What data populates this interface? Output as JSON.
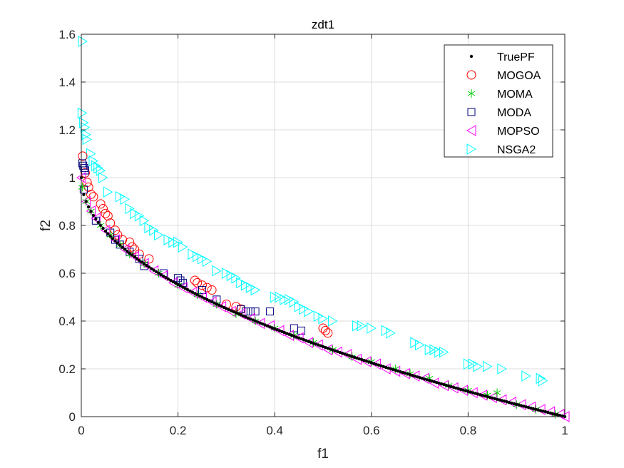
{
  "chart_data": {
    "type": "scatter",
    "title": "zdt1",
    "xlabel": "f1",
    "ylabel": "f2",
    "xlim": [
      0,
      1
    ],
    "ylim": [
      0,
      1.6
    ],
    "xticks": [
      "0",
      "0.2",
      "0.4",
      "0.6",
      "0.8",
      "1"
    ],
    "yticks": [
      "0",
      "0.2",
      "0.4",
      "0.6",
      "0.8",
      "1",
      "1.2",
      "1.4",
      "1.6"
    ],
    "xtick_values": [
      0,
      0.2,
      0.4,
      0.6,
      0.8,
      1
    ],
    "ytick_values": [
      0,
      0.2,
      0.4,
      0.6,
      0.8,
      1,
      1.2,
      1.4,
      1.6
    ],
    "grid": true,
    "legend_position": "top-right",
    "series": [
      {
        "name": "TruePF",
        "marker": "dot",
        "color": "#000000",
        "x": [
          0,
          0.005,
          0.01,
          0.02,
          0.03,
          0.04,
          0.05,
          0.06,
          0.08,
          0.1,
          0.12,
          0.14,
          0.16,
          0.18,
          0.2,
          0.22,
          0.24,
          0.26,
          0.28,
          0.3,
          0.32,
          0.34,
          0.36,
          0.38,
          0.4,
          0.42,
          0.44,
          0.46,
          0.48,
          0.5,
          0.52,
          0.54,
          0.56,
          0.58,
          0.6,
          0.62,
          0.64,
          0.66,
          0.68,
          0.7,
          0.72,
          0.74,
          0.76,
          0.78,
          0.8,
          0.82,
          0.84,
          0.86,
          0.88,
          0.9,
          0.92,
          0.94,
          0.96,
          0.98,
          1
        ],
        "y": [
          1,
          0.929,
          0.9,
          0.859,
          0.827,
          0.8,
          0.776,
          0.755,
          0.717,
          0.684,
          0.654,
          0.626,
          0.6,
          0.576,
          0.553,
          0.531,
          0.51,
          0.49,
          0.471,
          0.452,
          0.434,
          0.417,
          0.4,
          0.384,
          0.368,
          0.352,
          0.337,
          0.322,
          0.307,
          0.293,
          0.279,
          0.265,
          0.252,
          0.238,
          0.225,
          0.213,
          0.2,
          0.188,
          0.175,
          0.163,
          0.151,
          0.14,
          0.128,
          0.117,
          0.106,
          0.094,
          0.083,
          0.073,
          0.062,
          0.051,
          0.041,
          0.03,
          0.02,
          0.01,
          0
        ]
      },
      {
        "name": "MOGOA",
        "marker": "circle",
        "color": "#FF0000",
        "x": [
          0.003,
          0.008,
          0.012,
          0.015,
          0.02,
          0.025,
          0.04,
          0.045,
          0.05,
          0.055,
          0.06,
          0.07,
          0.075,
          0.085,
          0.1,
          0.105,
          0.11,
          0.12,
          0.14,
          0.235,
          0.24,
          0.25,
          0.26,
          0.27,
          0.3,
          0.32,
          0.33,
          0.5,
          0.505,
          0.51
        ],
        "y": [
          1.09,
          1.02,
          0.98,
          0.96,
          0.93,
          0.92,
          0.89,
          0.87,
          0.85,
          0.84,
          0.81,
          0.78,
          0.76,
          0.74,
          0.73,
          0.71,
          0.7,
          0.68,
          0.66,
          0.57,
          0.56,
          0.55,
          0.54,
          0.53,
          0.47,
          0.46,
          0.45,
          0.37,
          0.36,
          0.35
        ]
      },
      {
        "name": "MOMA",
        "marker": "asterisk",
        "color": "#00CC00",
        "x": [
          0.002,
          0.01,
          0.02,
          0.04,
          0.06,
          0.08,
          0.1,
          0.13,
          0.16,
          0.2,
          0.24,
          0.28,
          0.32,
          0.36,
          0.4,
          0.44,
          0.48,
          0.52,
          0.56,
          0.6,
          0.65,
          0.68,
          0.72,
          0.76,
          0.8,
          0.84,
          0.86,
          0.9,
          0.94,
          0.98
        ],
        "y": [
          0.96,
          0.9,
          0.86,
          0.8,
          0.76,
          0.72,
          0.68,
          0.64,
          0.6,
          0.55,
          0.51,
          0.47,
          0.43,
          0.4,
          0.37,
          0.34,
          0.31,
          0.28,
          0.25,
          0.23,
          0.2,
          0.18,
          0.16,
          0.13,
          0.11,
          0.09,
          0.1,
          0.05,
          0.03,
          0.01
        ]
      },
      {
        "name": "MODA",
        "marker": "square",
        "color": "#000080",
        "x": [
          0.002,
          0.004,
          0.006,
          0.008,
          0.005,
          0.03,
          0.06,
          0.07,
          0.08,
          0.1,
          0.12,
          0.13,
          0.17,
          0.2,
          0.205,
          0.21,
          0.25,
          0.28,
          0.33,
          0.34,
          0.35,
          0.36,
          0.39,
          0.44,
          0.455
        ],
        "y": [
          1.06,
          1.05,
          1.04,
          1.03,
          0.95,
          0.82,
          0.77,
          0.74,
          0.72,
          0.69,
          0.66,
          0.63,
          0.6,
          0.58,
          0.57,
          0.56,
          0.53,
          0.49,
          0.45,
          0.44,
          0.44,
          0.44,
          0.44,
          0.37,
          0.36
        ]
      },
      {
        "name": "MOPSO",
        "marker": "triangle-left",
        "color": "#FF00FF",
        "x": [
          0,
          0.01,
          0.02,
          0.03,
          0.05,
          0.07,
          0.09,
          0.11,
          0.13,
          0.15,
          0.17,
          0.19,
          0.21,
          0.23,
          0.25,
          0.27,
          0.29,
          0.31,
          0.33,
          0.35,
          0.37,
          0.39,
          0.41,
          0.43,
          0.45,
          0.47,
          0.49,
          0.51,
          0.53,
          0.55,
          0.57,
          0.59,
          0.61,
          0.63,
          0.65,
          0.67,
          0.69,
          0.71,
          0.73,
          0.75,
          0.77,
          0.79,
          0.81,
          0.83,
          0.85,
          0.87,
          0.89,
          0.91,
          0.93,
          0.95,
          0.97,
          0.99,
          1
        ],
        "y": [
          1,
          0.9,
          0.86,
          0.83,
          0.78,
          0.74,
          0.7,
          0.67,
          0.64,
          0.61,
          0.59,
          0.56,
          0.54,
          0.52,
          0.5,
          0.48,
          0.46,
          0.44,
          0.43,
          0.41,
          0.39,
          0.38,
          0.36,
          0.34,
          0.33,
          0.31,
          0.3,
          0.28,
          0.27,
          0.26,
          0.24,
          0.23,
          0.22,
          0.2,
          0.19,
          0.18,
          0.17,
          0.16,
          0.14,
          0.13,
          0.12,
          0.11,
          0.1,
          0.09,
          0.08,
          0.07,
          0.06,
          0.05,
          0.04,
          0.03,
          0.02,
          0.01,
          0
        ]
      },
      {
        "name": "NSGA2",
        "marker": "triangle-right",
        "color": "#00FFFF",
        "x": [
          0.003,
          0.002,
          0.005,
          0.008,
          0.01,
          0.012,
          0.02,
          0.025,
          0.03,
          0.035,
          0.04,
          0.045,
          0.055,
          0.08,
          0.09,
          0.1,
          0.11,
          0.12,
          0.13,
          0.14,
          0.15,
          0.16,
          0.18,
          0.19,
          0.2,
          0.21,
          0.23,
          0.24,
          0.25,
          0.26,
          0.28,
          0.3,
          0.31,
          0.32,
          0.33,
          0.34,
          0.35,
          0.36,
          0.4,
          0.41,
          0.42,
          0.43,
          0.44,
          0.45,
          0.46,
          0.47,
          0.49,
          0.5,
          0.52,
          0.57,
          0.58,
          0.6,
          0.63,
          0.64,
          0.69,
          0.7,
          0.72,
          0.73,
          0.74,
          0.75,
          0.8,
          0.81,
          0.82,
          0.84,
          0.87,
          0.92,
          0.95,
          0.955
        ],
        "y": [
          1.57,
          1.27,
          1.23,
          1.21,
          1.18,
          1.16,
          1.1,
          1.07,
          1.05,
          1.04,
          1.03,
          1,
          0.94,
          0.92,
          0.91,
          0.87,
          0.85,
          0.84,
          0.82,
          0.79,
          0.78,
          0.76,
          0.74,
          0.73,
          0.73,
          0.71,
          0.68,
          0.67,
          0.66,
          0.65,
          0.61,
          0.6,
          0.59,
          0.58,
          0.56,
          0.55,
          0.54,
          0.53,
          0.5,
          0.5,
          0.49,
          0.49,
          0.48,
          0.46,
          0.45,
          0.44,
          0.42,
          0.41,
          0.4,
          0.38,
          0.38,
          0.37,
          0.36,
          0.35,
          0.31,
          0.3,
          0.28,
          0.28,
          0.27,
          0.27,
          0.22,
          0.22,
          0.21,
          0.21,
          0.2,
          0.17,
          0.16,
          0.15
        ]
      }
    ]
  }
}
